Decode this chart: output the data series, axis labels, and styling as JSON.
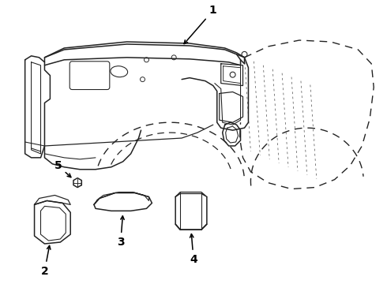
{
  "background_color": "#ffffff",
  "line_color": "#222222",
  "line_width": 1.1,
  "label_color": "#000000",
  "label_fontsize": 10,
  "figsize": [
    4.9,
    3.6
  ],
  "dpi": 100
}
